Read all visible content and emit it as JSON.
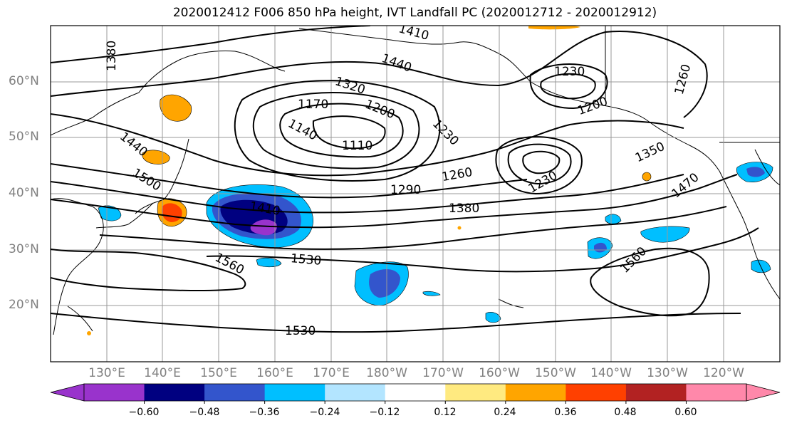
{
  "title": "2020012412 F006 850 hPa height, IVT Landfall PC (2020012712 - 2020012912)",
  "lat_labels": [
    "60°N",
    "50°N",
    "40°N",
    "30°N",
    "20°N"
  ],
  "lon_labels": [
    "130°E",
    "140°E",
    "150°E",
    "160°E",
    "170°E",
    "180°W",
    "170°W",
    "160°W",
    "150°W",
    "140°W",
    "130°W",
    "120°W"
  ],
  "contour_labels": [
    "1380",
    "1410",
    "1440",
    "1320",
    "1170",
    "1200",
    "1140",
    "1110",
    "1230",
    "1230",
    "1200",
    "1260",
    "1260",
    "1290",
    "1380",
    "1350",
    "1470",
    "1230",
    "1410",
    "1440",
    "1500",
    "1530",
    "1560",
    "1560",
    "1530"
  ],
  "colorbar": {
    "ticks": [
      "−0.60",
      "−0.48",
      "−0.36",
      "−0.24",
      "−0.12",
      "0.12",
      "0.24",
      "0.36",
      "0.48",
      "0.60"
    ],
    "colors": [
      "#9933cc",
      "#000080",
      "#3355cc",
      "#00bfff",
      "#b3e5ff",
      "#ffffff",
      "#ffea80",
      "#ffa500",
      "#ff4000",
      "#b22222",
      "#ff88aa"
    ]
  },
  "map": {
    "extent": {
      "lon_min": "120°E",
      "lon_max": "110°W",
      "lat_min": "10°N",
      "lat_max": "70°N"
    },
    "field": "850 hPa height",
    "shading": "IVT Landfall PC"
  }
}
